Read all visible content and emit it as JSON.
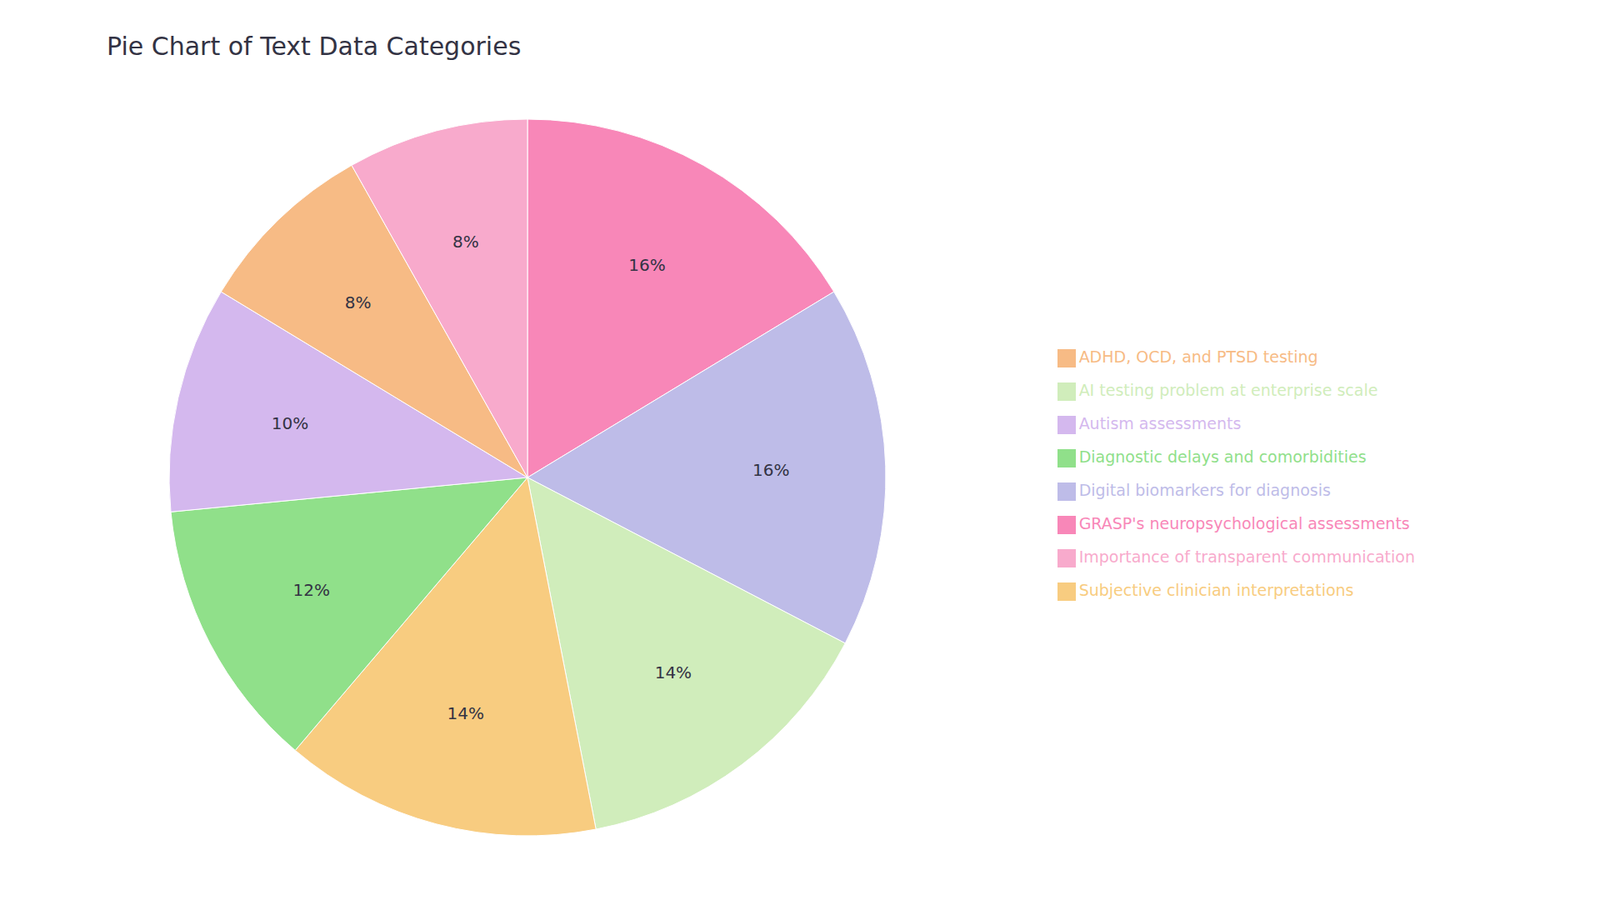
{
  "chart_data": {
    "type": "pie",
    "title": "Pie Chart of Text Data Categories",
    "categories": [
      "GRASP's neuropsychological assessments",
      "Digital biomarkers for diagnosis",
      "AI testing problem at enterprise scale",
      "Subjective clinician interpretations",
      "Diagnostic delays and comorbidities",
      "Autism assessments",
      "ADHD, OCD, and PTSD testing",
      "Importance of transparent communication"
    ],
    "values": [
      16,
      16,
      14,
      14,
      12,
      10,
      8,
      8
    ],
    "value_labels": [
      "16%",
      "16%",
      "14%",
      "14%",
      "12%",
      "10%",
      "8%",
      "8%"
    ],
    "colors": [
      "#F887B8",
      "#BEBCE8",
      "#D0EDBB",
      "#F8CC80",
      "#90E08A",
      "#D4B8EE",
      "#F7BB85",
      "#F8AACC"
    ],
    "data_labels": true,
    "legend": "right"
  }
}
